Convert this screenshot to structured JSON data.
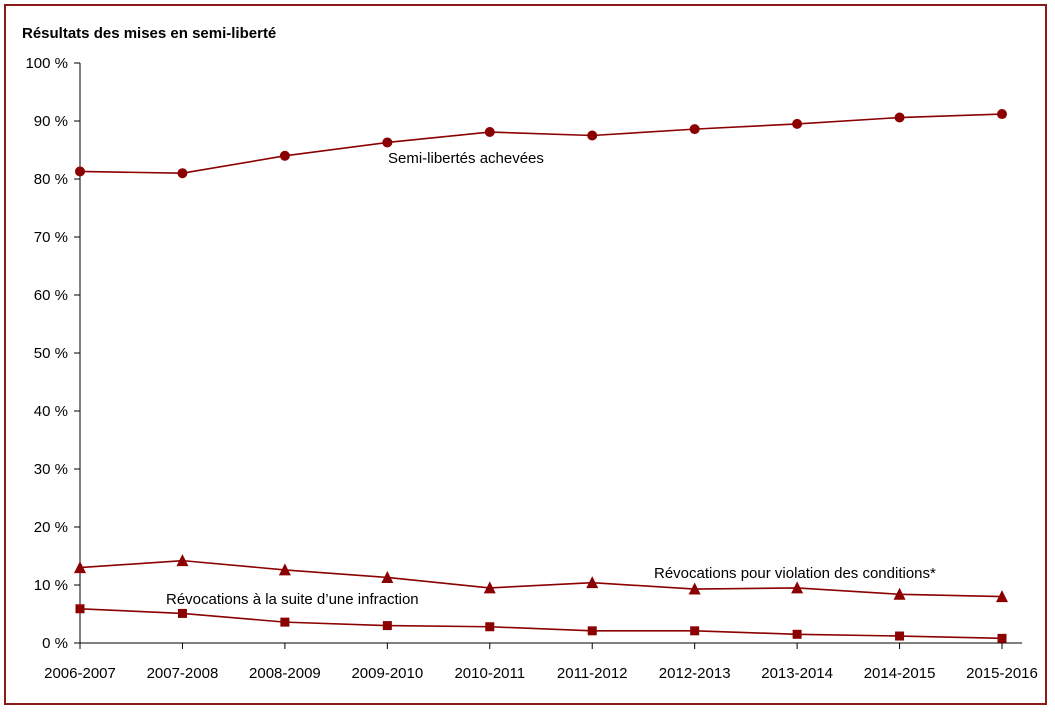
{
  "chart_data": {
    "type": "line",
    "title": "Résultats des mises en semi-liberté",
    "xlabel": "",
    "ylabel": "",
    "ylim": [
      0,
      100
    ],
    "ytick_labels": [
      "0 %",
      "10 %",
      "20 %",
      "30 %",
      "40 %",
      "50 %",
      "60 %",
      "70 %",
      "80 %",
      "90 %",
      "100 %"
    ],
    "categories": [
      "2006-2007",
      "2007-2008",
      "2008-2009",
      "2009-2010",
      "2010-2011",
      "2011-2012",
      "2012-2013",
      "2013-2014",
      "2014-2015",
      "2015-2016"
    ],
    "grid": false,
    "series": [
      {
        "name": "Semi-libertés achevées",
        "marker": "circle",
        "values": [
          81.3,
          81.0,
          84.0,
          86.3,
          88.1,
          87.5,
          88.6,
          89.5,
          90.6,
          91.2
        ]
      },
      {
        "name": "Révocations pour violation des conditions*",
        "marker": "triangle",
        "values": [
          13.0,
          14.2,
          12.6,
          11.3,
          9.5,
          10.4,
          9.3,
          9.5,
          8.4,
          8.0
        ]
      },
      {
        "name": "Révocations à la suite d’une infraction",
        "marker": "square",
        "values": [
          5.9,
          5.1,
          3.6,
          3.0,
          2.8,
          2.1,
          2.1,
          1.5,
          1.2,
          0.8
        ]
      }
    ],
    "colors": {
      "line": "#8b0000",
      "frame": "#8b1a1a"
    }
  }
}
